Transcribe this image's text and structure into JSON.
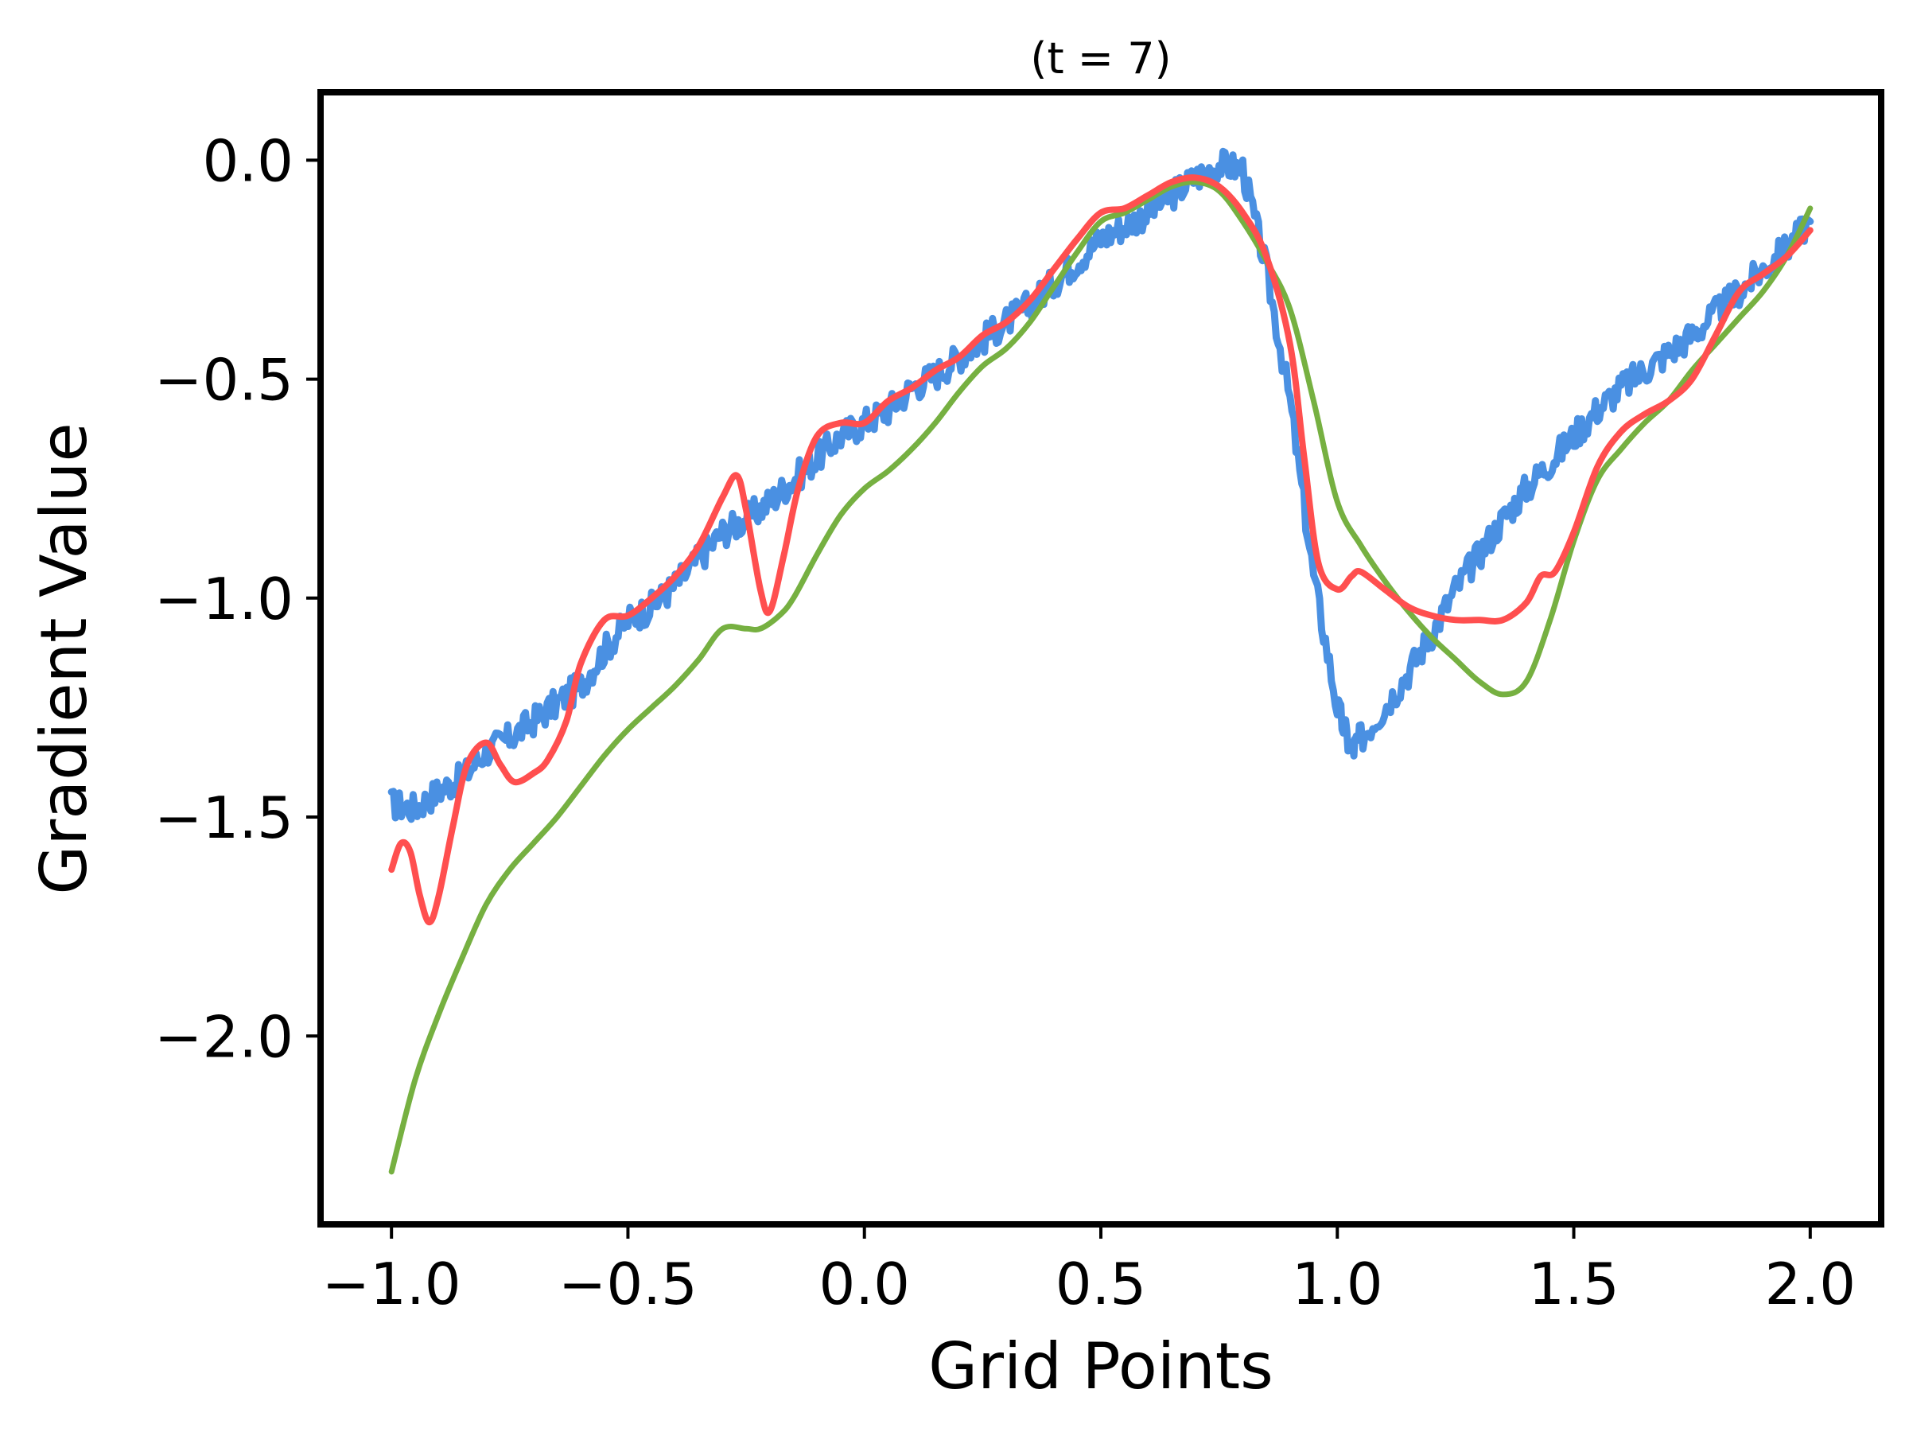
{
  "chart_data": {
    "type": "line",
    "title": "(t = 7)",
    "xlabel": "Grid Points",
    "ylabel": "Gradient Value",
    "xlim": [
      -1.15,
      2.15
    ],
    "ylim": [
      -2.43,
      0.155
    ],
    "xticks": [
      -1.0,
      -0.5,
      0.0,
      0.5,
      1.0,
      1.5,
      2.0
    ],
    "xtick_labels": [
      "−1.0",
      "−0.5",
      "0.0",
      "0.5",
      "1.0",
      "1.5",
      "2.0"
    ],
    "yticks": [
      0.0,
      -0.5,
      -1.0,
      -1.5,
      -2.0
    ],
    "ytick_labels": [
      "0.0",
      "−0.5",
      "−1.0",
      "−1.5",
      "−2.0"
    ],
    "grid": false,
    "legend": "none",
    "series": [
      {
        "color": "#4a90e2",
        "noisy": true,
        "x": [
          -1.0,
          -0.95,
          -0.9,
          -0.85,
          -0.8,
          -0.75,
          -0.7,
          -0.65,
          -0.6,
          -0.55,
          -0.5,
          -0.45,
          -0.4,
          -0.35,
          -0.3,
          -0.25,
          -0.2,
          -0.15,
          -0.1,
          -0.05,
          0.0,
          0.05,
          0.1,
          0.15,
          0.2,
          0.25,
          0.3,
          0.35,
          0.4,
          0.45,
          0.5,
          0.55,
          0.6,
          0.65,
          0.7,
          0.75,
          0.8,
          0.85,
          0.9,
          0.95,
          1.0,
          1.03,
          1.05,
          1.1,
          1.15,
          1.2,
          1.25,
          1.3,
          1.35,
          1.4,
          1.45,
          1.5,
          1.55,
          1.6,
          1.65,
          1.7,
          1.75,
          1.8,
          1.85,
          1.9,
          1.95,
          2.0
        ],
        "y": [
          -1.47,
          -1.48,
          -1.44,
          -1.41,
          -1.35,
          -1.32,
          -1.28,
          -1.24,
          -1.2,
          -1.12,
          -1.05,
          -1.02,
          -0.97,
          -0.91,
          -0.85,
          -0.82,
          -0.78,
          -0.73,
          -0.68,
          -0.63,
          -0.6,
          -0.57,
          -0.52,
          -0.49,
          -0.45,
          -0.41,
          -0.37,
          -0.33,
          -0.28,
          -0.23,
          -0.18,
          -0.15,
          -0.12,
          -0.08,
          -0.04,
          -0.01,
          -0.02,
          -0.25,
          -0.55,
          -0.95,
          -1.25,
          -1.35,
          -1.32,
          -1.25,
          -1.17,
          -1.08,
          -0.98,
          -0.9,
          -0.82,
          -0.75,
          -0.69,
          -0.63,
          -0.57,
          -0.52,
          -0.48,
          -0.44,
          -0.4,
          -0.35,
          -0.3,
          -0.25,
          -0.2,
          -0.14
        ]
      },
      {
        "color": "#76b041",
        "noisy": false,
        "x": [
          -1.0,
          -0.95,
          -0.9,
          -0.85,
          -0.8,
          -0.75,
          -0.7,
          -0.65,
          -0.6,
          -0.55,
          -0.5,
          -0.45,
          -0.4,
          -0.35,
          -0.3,
          -0.25,
          -0.22,
          -0.18,
          -0.15,
          -0.1,
          -0.05,
          0.0,
          0.05,
          0.1,
          0.15,
          0.2,
          0.25,
          0.3,
          0.35,
          0.4,
          0.45,
          0.5,
          0.55,
          0.6,
          0.65,
          0.7,
          0.75,
          0.8,
          0.85,
          0.9,
          0.95,
          1.0,
          1.05,
          1.1,
          1.15,
          1.2,
          1.25,
          1.3,
          1.35,
          1.4,
          1.45,
          1.5,
          1.55,
          1.6,
          1.65,
          1.7,
          1.75,
          1.8,
          1.85,
          1.9,
          1.95,
          2.0
        ],
        "y": [
          -2.31,
          -2.1,
          -1.95,
          -1.82,
          -1.7,
          -1.62,
          -1.56,
          -1.5,
          -1.43,
          -1.36,
          -1.3,
          -1.25,
          -1.2,
          -1.14,
          -1.07,
          -1.07,
          -1.07,
          -1.04,
          -1.0,
          -0.9,
          -0.81,
          -0.75,
          -0.71,
          -0.66,
          -0.6,
          -0.53,
          -0.47,
          -0.43,
          -0.37,
          -0.29,
          -0.21,
          -0.14,
          -0.12,
          -0.09,
          -0.06,
          -0.05,
          -0.07,
          -0.14,
          -0.23,
          -0.34,
          -0.55,
          -0.78,
          -0.88,
          -0.96,
          -1.03,
          -1.09,
          -1.14,
          -1.19,
          -1.22,
          -1.19,
          -1.05,
          -0.87,
          -0.73,
          -0.66,
          -0.6,
          -0.55,
          -0.48,
          -0.42,
          -0.36,
          -0.3,
          -0.22,
          -0.11
        ]
      },
      {
        "color": "#ff4f4f",
        "noisy": false,
        "x": [
          -1.0,
          -0.98,
          -0.96,
          -0.94,
          -0.92,
          -0.9,
          -0.87,
          -0.84,
          -0.8,
          -0.77,
          -0.74,
          -0.7,
          -0.67,
          -0.63,
          -0.6,
          -0.55,
          -0.5,
          -0.45,
          -0.4,
          -0.35,
          -0.3,
          -0.27,
          -0.25,
          -0.22,
          -0.2,
          -0.17,
          -0.14,
          -0.1,
          -0.05,
          0.0,
          0.05,
          0.1,
          0.15,
          0.2,
          0.25,
          0.3,
          0.35,
          0.4,
          0.45,
          0.5,
          0.55,
          0.6,
          0.65,
          0.7,
          0.75,
          0.8,
          0.85,
          0.9,
          0.93,
          0.96,
          1.0,
          1.03,
          1.05,
          1.1,
          1.15,
          1.2,
          1.25,
          1.3,
          1.35,
          1.4,
          1.43,
          1.46,
          1.5,
          1.55,
          1.6,
          1.65,
          1.7,
          1.75,
          1.8,
          1.85,
          1.9,
          1.95,
          2.0
        ],
        "y": [
          -1.62,
          -1.56,
          -1.58,
          -1.68,
          -1.74,
          -1.68,
          -1.52,
          -1.38,
          -1.33,
          -1.38,
          -1.42,
          -1.4,
          -1.37,
          -1.28,
          -1.15,
          -1.05,
          -1.04,
          -1.0,
          -0.95,
          -0.88,
          -0.77,
          -0.72,
          -0.8,
          -0.98,
          -1.03,
          -0.9,
          -0.75,
          -0.63,
          -0.6,
          -0.6,
          -0.55,
          -0.52,
          -0.48,
          -0.45,
          -0.4,
          -0.37,
          -0.32,
          -0.25,
          -0.18,
          -0.12,
          -0.11,
          -0.08,
          -0.05,
          -0.04,
          -0.06,
          -0.12,
          -0.22,
          -0.42,
          -0.68,
          -0.92,
          -0.98,
          -0.95,
          -0.94,
          -0.98,
          -1.02,
          -1.04,
          -1.05,
          -1.05,
          -1.05,
          -1.01,
          -0.95,
          -0.94,
          -0.85,
          -0.7,
          -0.62,
          -0.58,
          -0.55,
          -0.5,
          -0.4,
          -0.3,
          -0.26,
          -0.22,
          -0.16
        ]
      }
    ]
  }
}
